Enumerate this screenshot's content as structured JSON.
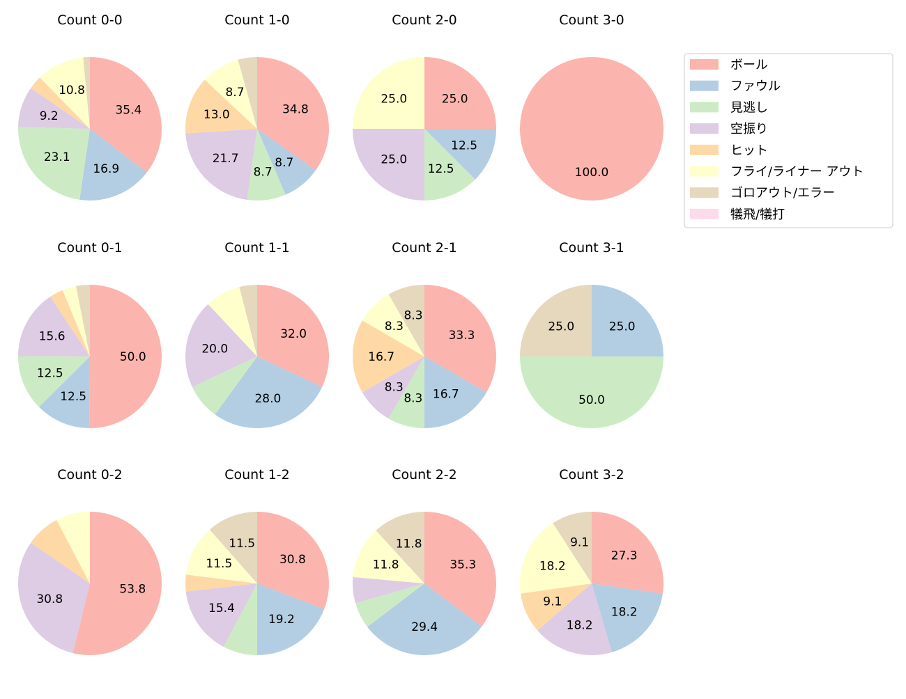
{
  "chart_data": {
    "type": "pie",
    "start_angle": 90,
    "direction": "clockwise",
    "value_unit": "percent",
    "categories": [
      "ボール",
      "ファウル",
      "見逃し",
      "空振り",
      "ヒット",
      "フライ/ライナー アウト",
      "ゴロアウト/エラー",
      "犠飛/犠打"
    ],
    "colors": [
      "#fbb4ae",
      "#b3cde3",
      "#ccebc5",
      "#decbe4",
      "#fed9a6",
      "#ffffcc",
      "#e5d8bd",
      "#fddaec"
    ],
    "legend_placement": "right",
    "charts": [
      {
        "title": "Count 0-0",
        "values": [
          35.4,
          16.9,
          23.1,
          9.2,
          3.1,
          10.8,
          1.5,
          0
        ]
      },
      {
        "title": "Count 1-0",
        "values": [
          34.8,
          8.7,
          8.7,
          21.7,
          13.0,
          8.7,
          4.3,
          0
        ]
      },
      {
        "title": "Count 2-0",
        "values": [
          25.0,
          12.5,
          12.5,
          25.0,
          0,
          25.0,
          0,
          0
        ]
      },
      {
        "title": "Count 3-0",
        "values": [
          100.0,
          0,
          0,
          0,
          0,
          0,
          0,
          0
        ]
      },
      {
        "title": "Count 0-1",
        "values": [
          50.0,
          12.5,
          12.5,
          15.6,
          3.1,
          3.1,
          3.1,
          0
        ]
      },
      {
        "title": "Count 1-1",
        "values": [
          32.0,
          28.0,
          8.0,
          20.0,
          0,
          8.0,
          4.0,
          0
        ]
      },
      {
        "title": "Count 2-1",
        "values": [
          33.3,
          16.7,
          8.3,
          8.3,
          16.7,
          8.3,
          8.3,
          0
        ]
      },
      {
        "title": "Count 3-1",
        "values": [
          0,
          25.0,
          50.0,
          0,
          0,
          0,
          25.0,
          0
        ]
      },
      {
        "title": "Count 0-2",
        "values": [
          53.8,
          0,
          0,
          30.8,
          7.7,
          7.7,
          0,
          0
        ]
      },
      {
        "title": "Count 1-2",
        "values": [
          30.8,
          19.2,
          7.7,
          15.4,
          3.8,
          11.5,
          11.5,
          0
        ]
      },
      {
        "title": "Count 2-2",
        "values": [
          35.3,
          29.4,
          5.9,
          5.9,
          0,
          11.8,
          11.8,
          0
        ]
      },
      {
        "title": "Count 3-2",
        "values": [
          27.3,
          18.2,
          0,
          18.2,
          9.1,
          18.2,
          9.1,
          0
        ]
      }
    ]
  }
}
